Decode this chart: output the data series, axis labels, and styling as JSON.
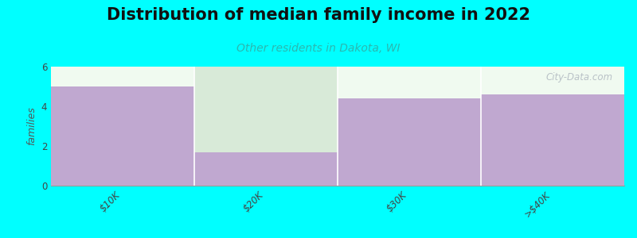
{
  "categories": [
    "$10K",
    "$20K",
    "$30K",
    ">$40K"
  ],
  "values": [
    5.0,
    1.7,
    4.4,
    4.6
  ],
  "bar_color": "#c0a8d0",
  "bar_color_second_bg": "#d8ead8",
  "title": "Distribution of median family income in 2022",
  "subtitle": "Other residents in Dakota, WI",
  "subtitle_color": "#2ab8b0",
  "ylabel": "families",
  "ylim": [
    0,
    6
  ],
  "yticks": [
    0,
    2,
    4,
    6
  ],
  "background_color": "#00ffff",
  "plot_bg_top": "#e8f4e8",
  "plot_bg_bottom": "#f8fef8",
  "watermark": "City-Data.com",
  "title_fontsize": 15,
  "subtitle_fontsize": 10,
  "ylabel_fontsize": 9
}
